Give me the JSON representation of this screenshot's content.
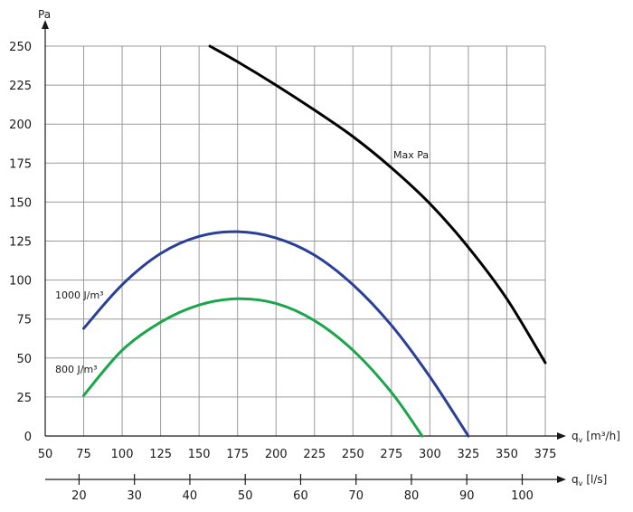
{
  "chart_data": {
    "type": "line",
    "grid": true,
    "y_axis": {
      "label": "Pa",
      "range": [
        0,
        250
      ],
      "ticks": [
        "0",
        "25",
        "50",
        "75",
        "100",
        "125",
        "150",
        "175",
        "200",
        "225",
        "250"
      ]
    },
    "x_axis_primary": {
      "label": "q",
      "subscript": "v",
      "unit": "[m³/h]",
      "range": [
        50,
        375
      ],
      "ticks": [
        "50",
        "75",
        "100",
        "125",
        "150",
        "175",
        "200",
        "225",
        "250",
        "275",
        "300",
        "325",
        "350",
        "375"
      ]
    },
    "x_axis_secondary": {
      "label": "q",
      "subscript": "v",
      "unit": "[l/s]",
      "ticks": [
        "20",
        "30",
        "40",
        "50",
        "60",
        "70",
        "80",
        "90",
        "100"
      ]
    },
    "series": [
      {
        "name": "Max Pa",
        "color": "#000000",
        "x": [
          157,
          175,
          200,
          225,
          250,
          275,
          300,
          325,
          350,
          375
        ],
        "y": [
          250,
          240,
          225,
          209,
          192,
          172,
          149,
          121,
          88,
          47
        ]
      },
      {
        "name": "1000 J/m³",
        "color": "#2a3f98",
        "x": [
          75,
          100,
          125,
          150,
          175,
          200,
          225,
          250,
          275,
          300,
          325
        ],
        "y": [
          69,
          97,
          117,
          128,
          131,
          127,
          116,
          97,
          71,
          38,
          0
        ]
      },
      {
        "name": "800 J/m³",
        "color": "#1aa64a",
        "x": [
          75,
          100,
          125,
          150,
          175,
          200,
          225,
          250,
          275,
          295
        ],
        "y": [
          26,
          55,
          73,
          84,
          88,
          85,
          74,
          55,
          28,
          0
        ]
      }
    ]
  }
}
